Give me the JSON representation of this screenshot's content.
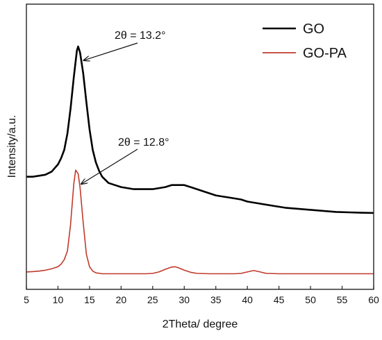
{
  "chart_data": {
    "type": "line",
    "title": "",
    "xlabel": "2Theta/ degree",
    "ylabel": "Intensity/a.u.",
    "xlim": [
      5,
      60
    ],
    "x_ticks": [
      "5",
      "10",
      "15",
      "20",
      "25",
      "30",
      "35",
      "40",
      "45",
      "50",
      "55",
      "60"
    ],
    "y_ticks_labeled": false,
    "grid": false,
    "legend_position": "top-right",
    "series": [
      {
        "name": "GO",
        "color": "#000000",
        "x": [
          5,
          6,
          7,
          8,
          9,
          10,
          10.5,
          11,
          11.5,
          12,
          12.5,
          13,
          13.2,
          13.5,
          14,
          14.5,
          15,
          15.5,
          16,
          16.5,
          17,
          18,
          19,
          20,
          21,
          22,
          23,
          24,
          25,
          26,
          27,
          28,
          29,
          30,
          31,
          32,
          33,
          34,
          35,
          36,
          37,
          38,
          39,
          40,
          42,
          44,
          46,
          48,
          50,
          52,
          54,
          56,
          58,
          60
        ],
        "y": [
          0.37,
          0.37,
          0.375,
          0.38,
          0.395,
          0.43,
          0.46,
          0.5,
          0.58,
          0.7,
          0.85,
          0.98,
          1.0,
          0.97,
          0.87,
          0.73,
          0.6,
          0.5,
          0.44,
          0.4,
          0.37,
          0.34,
          0.33,
          0.32,
          0.315,
          0.31,
          0.31,
          0.31,
          0.31,
          0.315,
          0.32,
          0.33,
          0.33,
          0.33,
          0.32,
          0.31,
          0.3,
          0.29,
          0.28,
          0.275,
          0.27,
          0.265,
          0.26,
          0.25,
          0.24,
          0.23,
          0.22,
          0.215,
          0.21,
          0.205,
          0.2,
          0.198,
          0.196,
          0.195
        ]
      },
      {
        "name": "GO-PA",
        "color": "#c0392b",
        "x": [
          5,
          6,
          7,
          8,
          9,
          10,
          10.5,
          11,
          11.5,
          12,
          12.5,
          12.8,
          13.2,
          13.5,
          14,
          14.5,
          15,
          15.5,
          16,
          17,
          18,
          20,
          22,
          24,
          25,
          26,
          27,
          28,
          28.5,
          29,
          30,
          31,
          32,
          34,
          36,
          38,
          39,
          40,
          41,
          42,
          43,
          45,
          48,
          50,
          52,
          55,
          58,
          60
        ],
        "y": [
          0.02,
          0.022,
          0.025,
          0.03,
          0.038,
          0.05,
          0.065,
          0.09,
          0.14,
          0.29,
          0.52,
          0.6,
          0.58,
          0.5,
          0.3,
          0.12,
          0.05,
          0.025,
          0.015,
          0.01,
          0.01,
          0.01,
          0.01,
          0.01,
          0.012,
          0.02,
          0.035,
          0.048,
          0.05,
          0.045,
          0.03,
          0.018,
          0.012,
          0.01,
          0.01,
          0.01,
          0.012,
          0.02,
          0.028,
          0.02,
          0.012,
          0.01,
          0.01,
          0.01,
          0.01,
          0.01,
          0.01,
          0.01
        ]
      }
    ],
    "annotations": [
      {
        "text": "2θ = 13.2°",
        "target_x": 13.2,
        "target_y": 1.0
      },
      {
        "text": "2θ = 12.8°",
        "target_x": 12.8,
        "target_y": 0.6
      }
    ]
  }
}
